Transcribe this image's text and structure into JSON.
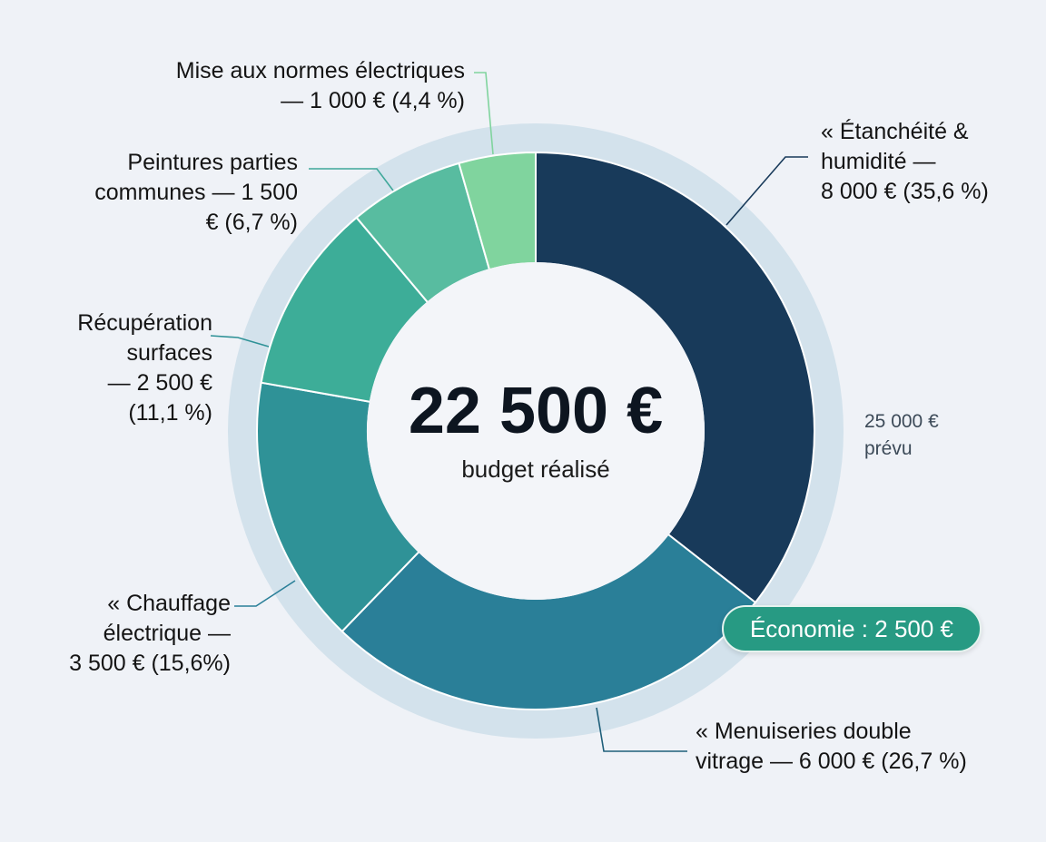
{
  "chart_data": {
    "type": "pie",
    "variant": "donut",
    "center_value": "22 500 €",
    "center_label": "budget réalisé",
    "planned_label": [
      "25 000 €",
      "prévu"
    ],
    "savings_badge": "Économie : 2 500 €",
    "slices": [
      {
        "name": "Étanchéité & humidité",
        "value": 8000,
        "percent": 35.6,
        "color": "#183a5a",
        "label": [
          "« Étanchéité &",
          "humidité —",
          "8 000 € (35,6 %)"
        ]
      },
      {
        "name": "Menuiseries double vitrage",
        "value": 6000,
        "percent": 26.7,
        "color": "#2a7f98",
        "label": [
          "« Menuiseries double",
          "vitrage — 6 000 € (26,7 %)"
        ]
      },
      {
        "name": "Chauffage électrique",
        "value": 3500,
        "percent": 15.6,
        "color": "#2f9297",
        "label": [
          "« Chauffage",
          "électrique —",
          "3 500 € (15,6%)"
        ]
      },
      {
        "name": "Récupération surfaces",
        "value": 2500,
        "percent": 11.1,
        "color": "#3dad98",
        "label": [
          "Récupération",
          "surfaces",
          "— 2 500 €",
          "(11,1 %)"
        ]
      },
      {
        "name": "Peintures parties communes",
        "value": 1500,
        "percent": 6.7,
        "color": "#58bca0",
        "label": [
          "Peintures parties",
          "communes — 1 500",
          "€ (6,7 %)"
        ]
      },
      {
        "name": "Mise aux normes électriques",
        "value": 1000,
        "percent": 4.4,
        "color": "#80d49e",
        "label": [
          "Mise aux normes électriques",
          "— 1 000 € (4,4 %)"
        ]
      }
    ],
    "colors": {
      "background": "#eff2f7",
      "planned_ring": "#d3e2ec",
      "badge": "#279a83"
    }
  }
}
